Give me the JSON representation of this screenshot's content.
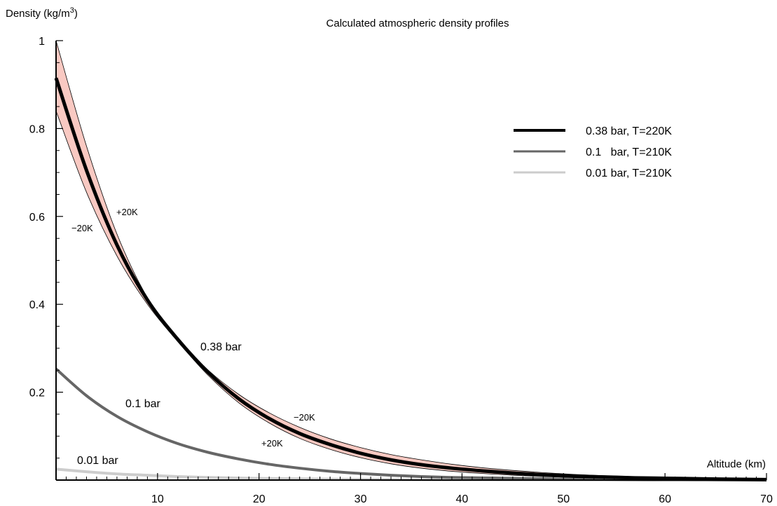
{
  "chart_data": {
    "type": "line",
    "title": "Calculated atmospheric density profiles",
    "ylabel": "Density (kg/m³)",
    "ylabel_base": "Density (kg/m",
    "ylabel_sup": "3",
    "ylabel_close": ")",
    "xlabel": "Altitude (km)",
    "xlim": [
      0,
      70
    ],
    "ylim": [
      0,
      1
    ],
    "x_ticks": [
      10,
      20,
      30,
      40,
      50,
      60,
      70
    ],
    "x_tick_labels": [
      "10",
      "20",
      "30",
      "40",
      "50",
      "60",
      "70"
    ],
    "y_ticks": [
      0.2,
      0.4,
      0.6,
      0.8,
      1
    ],
    "y_tick_labels": [
      "0.2",
      "0.4",
      "0.6",
      "0.8",
      "1"
    ],
    "x": [
      0,
      3,
      6,
      9,
      12,
      15,
      18,
      21,
      24,
      27,
      30,
      33,
      36,
      39,
      42,
      45,
      48,
      51,
      54,
      57,
      60,
      63,
      66,
      70
    ],
    "series": [
      {
        "name": "0.38 bar, T=220K",
        "color": "#000000",
        "values": [
          0.915,
          0.705,
          0.535,
          0.41,
          0.32,
          0.245,
          0.185,
          0.14,
          0.106,
          0.081,
          0.061,
          0.046,
          0.035,
          0.027,
          0.021,
          0.016,
          0.012,
          0.009,
          0.007,
          0.005,
          0.004,
          0.003,
          0.002,
          0.001
        ],
        "band_color": "#f9c9c2",
        "band_upper": [
          1.0,
          0.76,
          0.56,
          0.415,
          0.32,
          0.25,
          0.195,
          0.153,
          0.12,
          0.094,
          0.074,
          0.058,
          0.046,
          0.036,
          0.028,
          0.022,
          0.017,
          0.013,
          0.01,
          0.008,
          0.006,
          0.004,
          0.003,
          0.002
        ],
        "band_lower": [
          0.84,
          0.655,
          0.51,
          0.4,
          0.315,
          0.238,
          0.176,
          0.13,
          0.095,
          0.07,
          0.051,
          0.037,
          0.027,
          0.02,
          0.015,
          0.011,
          0.008,
          0.006,
          0.004,
          0.003,
          0.002,
          0.001,
          0.001,
          0.0005
        ]
      },
      {
        "name": "0.1   bar, T=210K",
        "color": "#666666",
        "values": [
          0.253,
          0.192,
          0.145,
          0.11,
          0.083,
          0.063,
          0.048,
          0.036,
          0.027,
          0.02,
          0.015,
          0.011,
          0.008,
          0.006,
          0.005,
          0.004,
          0.003,
          0.002,
          0.0015,
          0.001,
          0.0008,
          0.0006,
          0.0004,
          0.0003
        ]
      },
      {
        "name": "0.01 bar, T=210K",
        "color": "#cccccc",
        "values": [
          0.025,
          0.019,
          0.014,
          0.011,
          0.008,
          0.006,
          0.0045,
          0.0035,
          0.0027,
          0.002,
          0.0015,
          0.0011,
          0.0008,
          0.0006,
          0.0005,
          0.0004,
          0.0003,
          0.0002,
          0.0002,
          0.0001,
          0.0001,
          0.0001,
          0.0001,
          0.0
        ]
      }
    ],
    "annotations": {
      "curve_038": "0.38 bar",
      "curve_01": "0.1 bar",
      "curve_001": "0.01 bar",
      "plus20_top": "+20K",
      "minus20_top": "−20K",
      "minus20_mid": "−20K",
      "plus20_mid": "+20K"
    },
    "legend_position": "top-right",
    "grid": false
  }
}
